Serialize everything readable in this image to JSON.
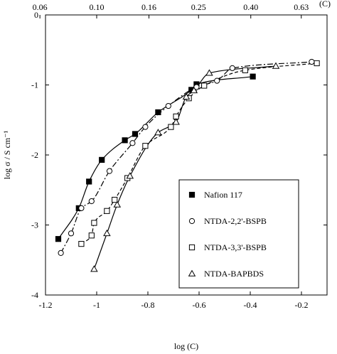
{
  "chart_data": {
    "type": "scatter",
    "xlabel": "log (C)",
    "ylabel": "log σ / S cm⁻¹",
    "top_axis_label": "(C)",
    "xlim": [
      -1.2,
      -0.1
    ],
    "ylim": [
      -4,
      0
    ],
    "xticks": [
      -1.2,
      -1.0,
      -0.8,
      -0.6,
      -0.4,
      -0.2
    ],
    "xtick_labels": [
      "-1.2",
      "-1",
      "-0.8",
      "-0.6",
      "-0.4",
      "-0.2"
    ],
    "yticks": [
      0,
      -1,
      -2,
      -3,
      -4
    ],
    "ytick_labels": [
      "0",
      "-1",
      "-2",
      "-3",
      "-4"
    ],
    "top_ticks": [
      0.06,
      0.1,
      0.16,
      0.25,
      0.4,
      0.63
    ],
    "top_tick_labels": [
      "0.06",
      "0.10",
      "0.16",
      "0.25",
      "0.40",
      "0.63"
    ],
    "grid": false,
    "legend_position": "lower-right",
    "series": [
      {
        "name": "Nafion 117",
        "marker": "filled-square",
        "line_style": "solid",
        "x": [
          -1.15,
          -1.07,
          -1.03,
          -0.98,
          -0.89,
          -0.85,
          -0.76,
          -0.63,
          -0.61,
          -0.39
        ],
        "y": [
          -3.2,
          -2.76,
          -2.38,
          -2.07,
          -1.79,
          -1.7,
          -1.39,
          -1.07,
          -0.99,
          -0.88
        ]
      },
      {
        "name": "NTDA-2,2'-BSPB",
        "marker": "open-circle",
        "line_style": "dash-dot",
        "x": [
          -1.14,
          -1.1,
          -1.06,
          -1.02,
          -0.95,
          -0.86,
          -0.81,
          -0.72,
          -0.61,
          -0.53,
          -0.47,
          -0.16
        ],
        "y": [
          -3.4,
          -3.12,
          -2.76,
          -2.66,
          -2.23,
          -1.83,
          -1.6,
          -1.3,
          -1.03,
          -0.94,
          -0.76,
          -0.67
        ]
      },
      {
        "name": "NTDA-3,3'-BSPB",
        "marker": "open-square",
        "line_style": "dashed",
        "x": [
          -1.06,
          -1.02,
          -1.01,
          -0.96,
          -0.93,
          -0.88,
          -0.81,
          -0.71,
          -0.69,
          -0.64,
          -0.58,
          -0.42,
          -0.14
        ],
        "y": [
          -3.27,
          -3.15,
          -2.97,
          -2.8,
          -2.64,
          -2.33,
          -1.87,
          -1.6,
          -1.45,
          -1.19,
          -1.01,
          -0.79,
          -0.69
        ]
      },
      {
        "name": "NTDA-BAPBDS",
        "marker": "open-triangle",
        "line_style": "solid",
        "x": [
          -1.01,
          -0.96,
          -0.92,
          -0.87,
          -0.76,
          -0.69,
          -0.65,
          -0.62,
          -0.56,
          -0.3
        ],
        "y": [
          -3.63,
          -3.12,
          -2.71,
          -2.3,
          -1.68,
          -1.53,
          -1.17,
          -1.08,
          -0.83,
          -0.73
        ]
      }
    ]
  }
}
